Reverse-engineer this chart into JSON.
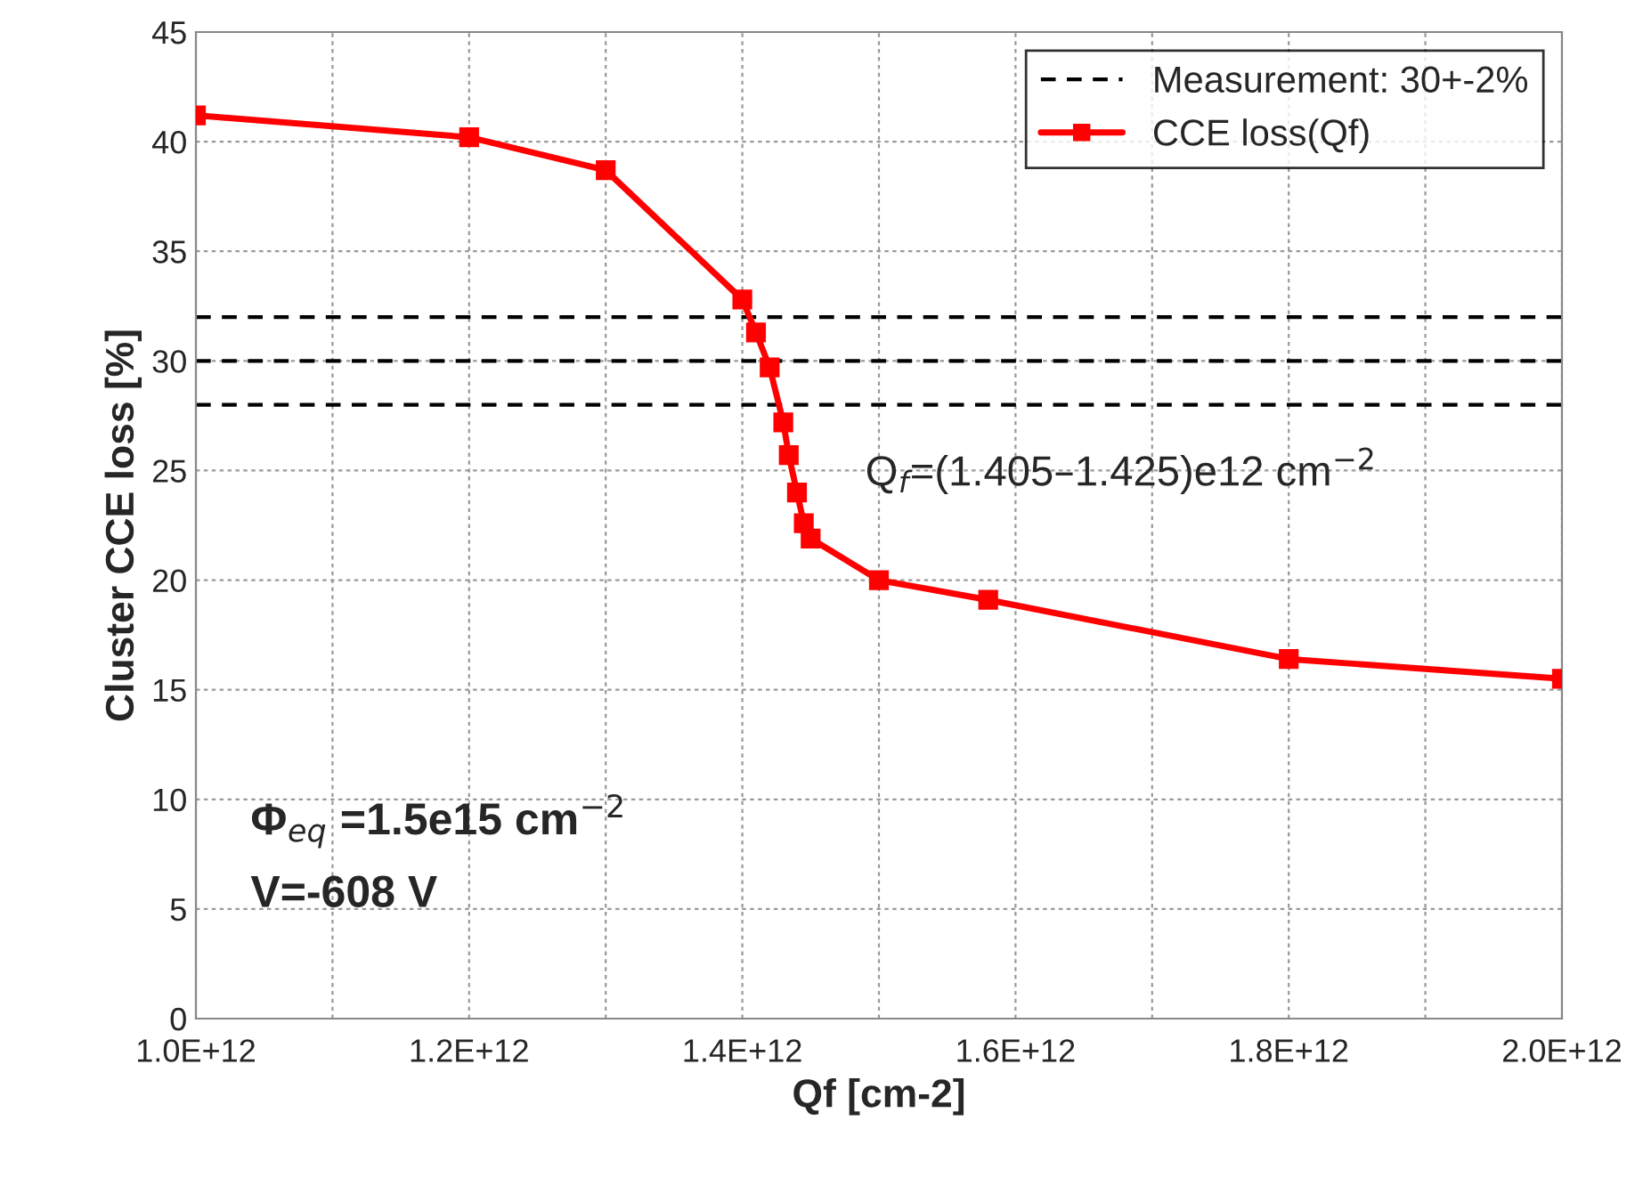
{
  "chart_data": {
    "type": "line",
    "xlabel": "Qf [cm-2]",
    "ylabel": "Cluster CCE loss [%]",
    "x": [
      1000000000000.0,
      1200000000000.0,
      1300000000000.0,
      1400000000000.0,
      1410000000000.0,
      1420000000000.0,
      1430000000000.0,
      1434000000000.0,
      1440000000000.0,
      1445000000000.0,
      1450000000000.0,
      1500000000000.0,
      1580000000000.0,
      1800000000000.0,
      2000000000000.0
    ],
    "series": [
      {
        "name": "CCE loss(Qf)",
        "color": "#ff0000",
        "values": [
          41.2,
          40.2,
          38.7,
          32.8,
          31.3,
          29.7,
          27.2,
          25.7,
          24.0,
          22.6,
          21.9,
          20.0,
          19.1,
          16.4,
          15.5
        ]
      }
    ],
    "marker": "square",
    "line_style": "solid",
    "ref_lines": [
      {
        "axis": "y",
        "value": 32,
        "label": null,
        "line_style": "dashed",
        "color": "#000000"
      },
      {
        "axis": "y",
        "value": 30,
        "label": "Measurement: 30+-2%",
        "line_style": "dashed",
        "color": "#000000"
      },
      {
        "axis": "y",
        "value": 28,
        "label": null,
        "line_style": "dashed",
        "color": "#000000"
      }
    ],
    "annotations": [
      "Q$_{f}$=(1.405–1.425)e12 cm$^{−2}$",
      "Φ$_{eq}$ =1.5e15 cm$^{−2}$",
      "V=-608 V"
    ],
    "xlim": [
      1000000000000.0,
      2000000000000.0
    ],
    "xticks": [
      {
        "value": 1000000000000.0,
        "label": "1.0E+12"
      },
      {
        "value": 1100000000000.0,
        "label": null
      },
      {
        "value": 1200000000000.0,
        "label": "1.2E+12"
      },
      {
        "value": 1300000000000.0,
        "label": null
      },
      {
        "value": 1400000000000.0,
        "label": "1.4E+12"
      },
      {
        "value": 1500000000000.0,
        "label": null
      },
      {
        "value": 1600000000000.0,
        "label": "1.6E+12"
      },
      {
        "value": 1700000000000.0,
        "label": null
      },
      {
        "value": 1800000000000.0,
        "label": "1.8E+12"
      },
      {
        "value": 1900000000000.0,
        "label": null
      },
      {
        "value": 2000000000000.0,
        "label": "2.0E+12"
      }
    ],
    "ylim": [
      0,
      45
    ],
    "yticks": [
      0,
      5,
      10,
      15,
      20,
      25,
      30,
      35,
      40,
      45
    ],
    "grid": true,
    "legend": "top right"
  }
}
